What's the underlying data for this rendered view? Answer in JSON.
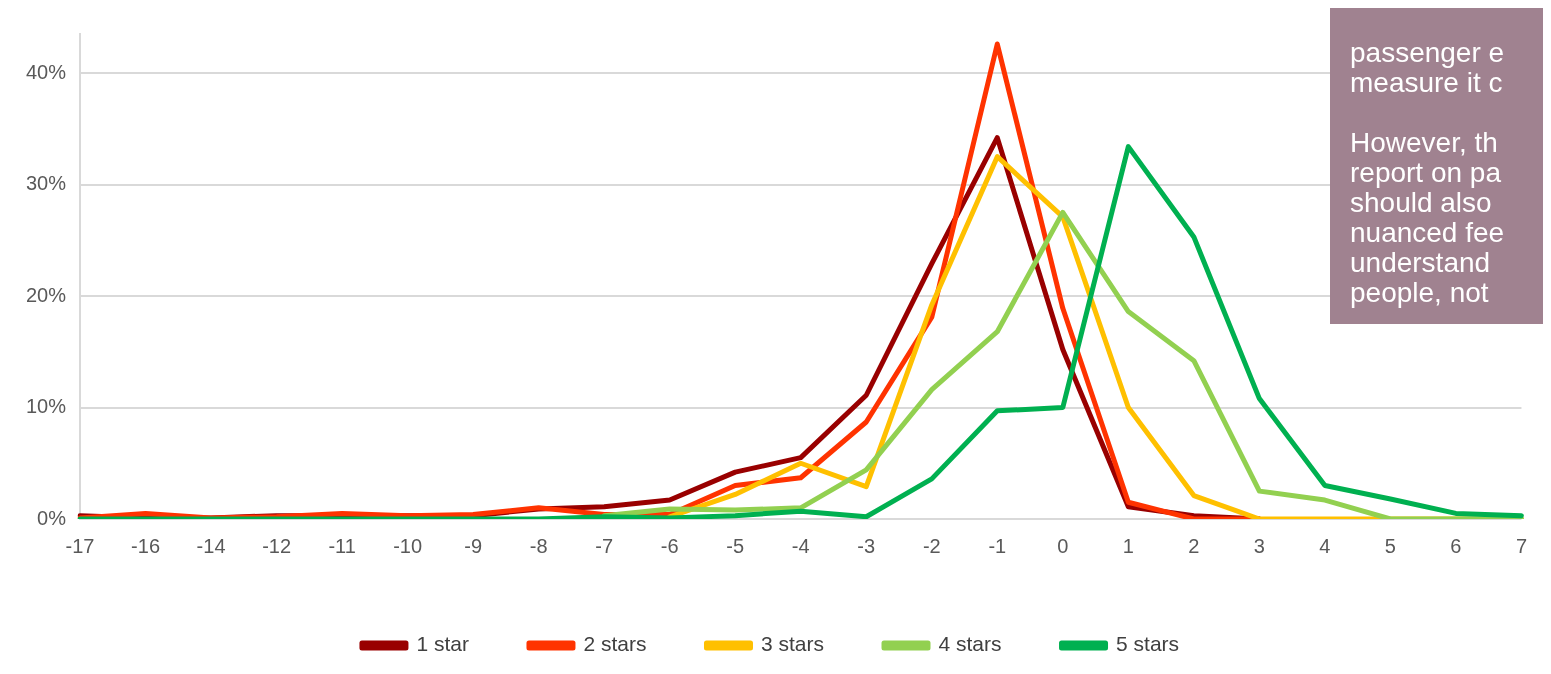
{
  "chart_data": {
    "type": "line",
    "categories": [
      "-17",
      "-16",
      "-14",
      "-12",
      "-11",
      "-10",
      "-9",
      "-8",
      "-7",
      "-6",
      "-5",
      "-4",
      "-3",
      "-2",
      "-1",
      "0",
      "1",
      "2",
      "3",
      "4",
      "5",
      "6",
      "7"
    ],
    "series": [
      {
        "name": "1 star",
        "color": "#990000",
        "values": [
          0.3,
          0.1,
          0.1,
          0.3,
          0.3,
          0.3,
          0.3,
          0.9,
          1.1,
          1.7,
          4.2,
          5.5,
          11.1,
          22.9,
          34.2,
          15.2,
          1.1,
          0.3,
          0,
          null,
          null,
          null,
          null
        ]
      },
      {
        "name": "2 stars",
        "color": "#ff3300",
        "values": [
          0.1,
          0.5,
          0.1,
          0.2,
          0.5,
          0.3,
          0.4,
          1.0,
          0.4,
          0.4,
          3.0,
          3.7,
          8.7,
          18.1,
          42.6,
          18.9,
          1.5,
          0,
          0,
          null,
          null,
          null,
          null
        ]
      },
      {
        "name": "3 stars",
        "color": "#ffc000",
        "values": [
          null,
          null,
          null,
          null,
          null,
          null,
          null,
          null,
          null,
          0.2,
          2.2,
          5.0,
          2.9,
          19.2,
          32.5,
          27.1,
          10.0,
          2.1,
          0,
          0,
          0,
          0,
          0
        ]
      },
      {
        "name": "4 stars",
        "color": "#92d050",
        "values": [
          null,
          null,
          null,
          null,
          null,
          null,
          null,
          null,
          0.3,
          0.9,
          0.8,
          1.0,
          4.4,
          11.6,
          16.8,
          27.5,
          18.6,
          14.2,
          2.5,
          1.7,
          0,
          0,
          0
        ]
      },
      {
        "name": "5 stars",
        "color": "#00b050",
        "values": [
          0,
          0,
          0,
          0,
          0,
          0,
          0,
          0,
          0.2,
          0.1,
          0.3,
          0.7,
          0.2,
          3.6,
          9.7,
          10.0,
          33.4,
          25.3,
          10.8,
          3.0,
          1.8,
          0.5,
          0.3
        ]
      }
    ],
    "ylim": [
      0,
      43.5
    ],
    "yticks": [
      {
        "value": 0,
        "label": "0%"
      },
      {
        "value": 10,
        "label": "10%"
      },
      {
        "value": 20,
        "label": "20%"
      },
      {
        "value": 30,
        "label": "30%"
      },
      {
        "value": 40,
        "label": "40%"
      }
    ],
    "grid": "y",
    "legend": "bottom",
    "marker": "none",
    "line_style": "solid",
    "annotations": [
      "passenger e\nmeasure it c\n\nHowever, th\nreport on pa\nshould also\nnuanced fee\nunderstand\npeople, not"
    ]
  }
}
